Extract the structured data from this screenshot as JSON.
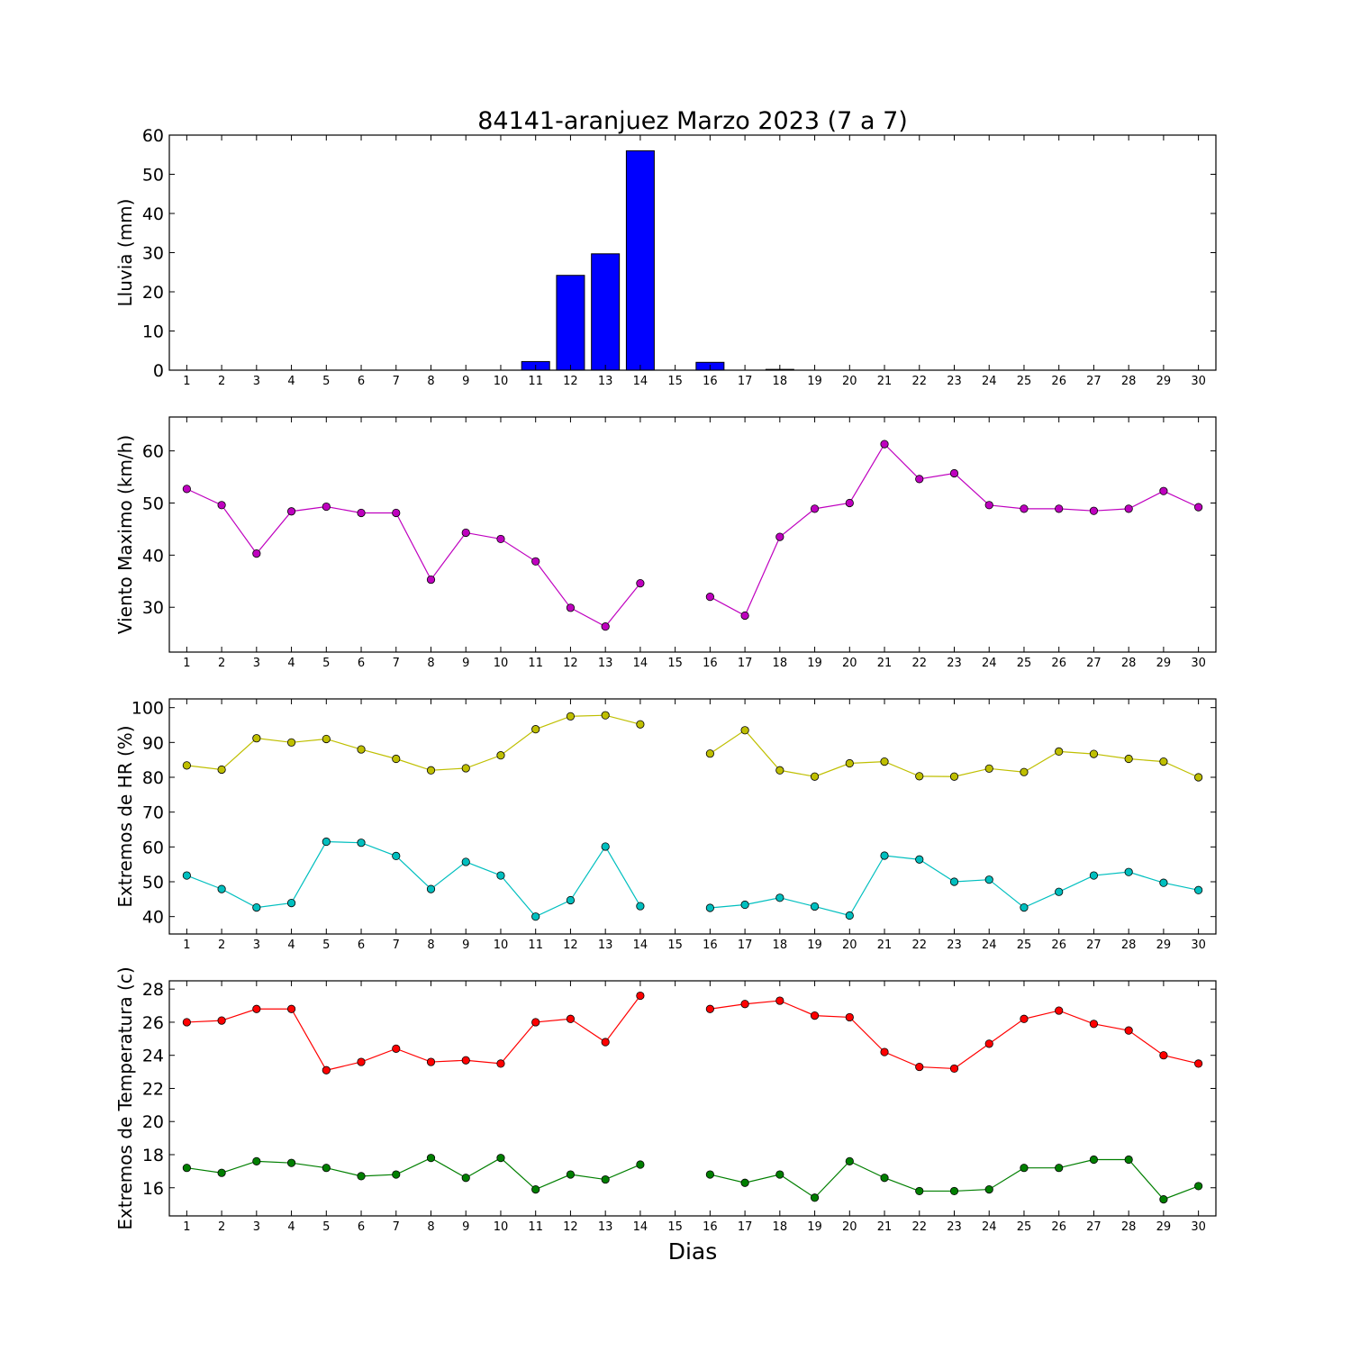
{
  "chart_data": {
    "title": "84141-aranjuez Marzo 2023  (7 a 7)",
    "xlabel": "Dias",
    "days": [
      1,
      2,
      3,
      4,
      5,
      6,
      7,
      8,
      9,
      10,
      11,
      12,
      13,
      14,
      15,
      16,
      17,
      18,
      19,
      20,
      21,
      22,
      23,
      24,
      25,
      26,
      27,
      28,
      29,
      30
    ],
    "grid": false,
    "panels": [
      {
        "type": "bar",
        "ylabel": "Lluvia (mm)",
        "ylim": [
          0,
          60
        ],
        "yticks": [
          0,
          10,
          20,
          30,
          40,
          50,
          60
        ],
        "series": [
          {
            "color": "#0000ff",
            "values": [
              0,
              0,
              0,
              0,
              0,
              0,
              0,
              0,
              0,
              0,
              2.2,
              24.2,
              29.7,
              56,
              0,
              2,
              0,
              0.2,
              0,
              0,
              0,
              0,
              0,
              0,
              0,
              0,
              0,
              0,
              0,
              0
            ]
          }
        ]
      },
      {
        "type": "line",
        "ylabel": "Viento Maximo (km/h)",
        "ylim": [
          21.4,
          66.5
        ],
        "yticks": [
          30,
          40,
          50,
          60
        ],
        "series": [
          {
            "color": "#bf00bf",
            "values": [
              52.7,
              49.6,
              40.3,
              48.4,
              49.3,
              48.1,
              48.1,
              35.3,
              44.3,
              43.1,
              38.8,
              29.9,
              26.3,
              34.6,
              null,
              32,
              28.4,
              43.5,
              48.9,
              50,
              61.3,
              54.6,
              55.7,
              49.6,
              48.9,
              48.9,
              48.5,
              48.9,
              52.3,
              49.2
            ]
          }
        ]
      },
      {
        "type": "line",
        "ylabel": "Extremos de HR (%)",
        "ylim": [
          35,
          102.5
        ],
        "yticks": [
          40,
          50,
          60,
          70,
          80,
          90,
          100
        ],
        "series": [
          {
            "color": "#bfbf00",
            "values": [
              83.4,
              82.2,
              91.2,
              90,
              91,
              88,
              85.3,
              82,
              82.6,
              86.3,
              93.8,
              97.5,
              97.8,
              95.2,
              null,
              86.8,
              93.5,
              82,
              80.2,
              84,
              84.5,
              80.3,
              80.2,
              82.5,
              81.5,
              87.4,
              86.7,
              85.3,
              84.5,
              80
            ]
          },
          {
            "color": "#00bfbf",
            "values": [
              51.8,
              47.9,
              42.6,
              43.9,
              61.5,
              61.2,
              57.4,
              47.9,
              55.7,
              51.8,
              40,
              44.7,
              60.1,
              43,
              null,
              42.5,
              43.4,
              45.4,
              42.9,
              40.3,
              57.5,
              56.4,
              50,
              50.6,
              42.6,
              47.1,
              51.8,
              52.8,
              49.7,
              47.6
            ]
          }
        ]
      },
      {
        "type": "line",
        "ylabel": "Extremos de Temperatura (c)",
        "ylim": [
          14.3,
          28.5
        ],
        "yticks": [
          16,
          18,
          20,
          22,
          24,
          26,
          28
        ],
        "series": [
          {
            "color": "#ff0000",
            "values": [
              26,
              26.1,
              26.8,
              26.8,
              23.1,
              23.6,
              24.4,
              23.6,
              23.7,
              23.5,
              26,
              26.2,
              24.8,
              27.6,
              null,
              26.8,
              27.1,
              27.3,
              26.4,
              26.3,
              24.2,
              23.3,
              23.2,
              24.7,
              26.2,
              26.7,
              25.9,
              25.5,
              24,
              23.5
            ]
          },
          {
            "color": "#007f00",
            "values": [
              17.2,
              16.9,
              17.6,
              17.5,
              17.2,
              16.7,
              16.8,
              17.8,
              16.6,
              17.8,
              15.9,
              16.8,
              16.5,
              17.4,
              null,
              16.8,
              16.3,
              16.8,
              15.4,
              17.6,
              16.6,
              15.8,
              15.8,
              15.9,
              17.2,
              17.2,
              17.7,
              17.7,
              15.3,
              16.1
            ]
          }
        ]
      }
    ]
  }
}
